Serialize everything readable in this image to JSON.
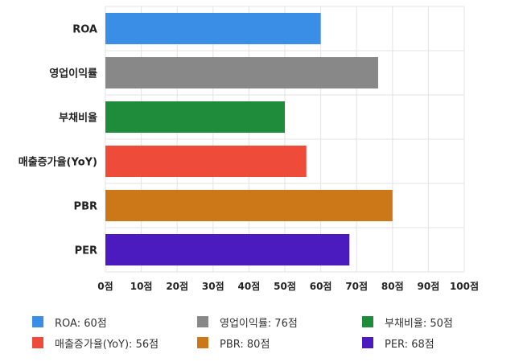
{
  "chart_data": {
    "type": "bar",
    "orientation": "horizontal",
    "categories": [
      "ROA",
      "영업이익률",
      "부채비율",
      "매출증가율(YoY)",
      "PBR",
      "PER"
    ],
    "values": [
      60,
      76,
      50,
      56,
      80,
      68
    ],
    "colors": [
      "#3a8ee6",
      "#888888",
      "#1e8c3a",
      "#ee4b3a",
      "#cc7718",
      "#4b1bbf"
    ],
    "xlim": [
      0,
      100
    ],
    "x_ticks": [
      "0점",
      "10점",
      "20점",
      "30점",
      "40점",
      "50점",
      "60점",
      "70점",
      "80점",
      "90점",
      "100점"
    ],
    "grid": true,
    "legend_position": "bottom",
    "legend": [
      {
        "label": "ROA: 60점",
        "color": "#3a8ee6"
      },
      {
        "label": "영업이익률: 76점",
        "color": "#888888"
      },
      {
        "label": "부채비율: 50점",
        "color": "#1e8c3a"
      },
      {
        "label": "매출증가율(YoY): 56점",
        "color": "#ee4b3a"
      },
      {
        "label": "PBR: 80점",
        "color": "#cc7718"
      },
      {
        "label": "PER: 68점",
        "color": "#4b1bbf"
      }
    ]
  }
}
